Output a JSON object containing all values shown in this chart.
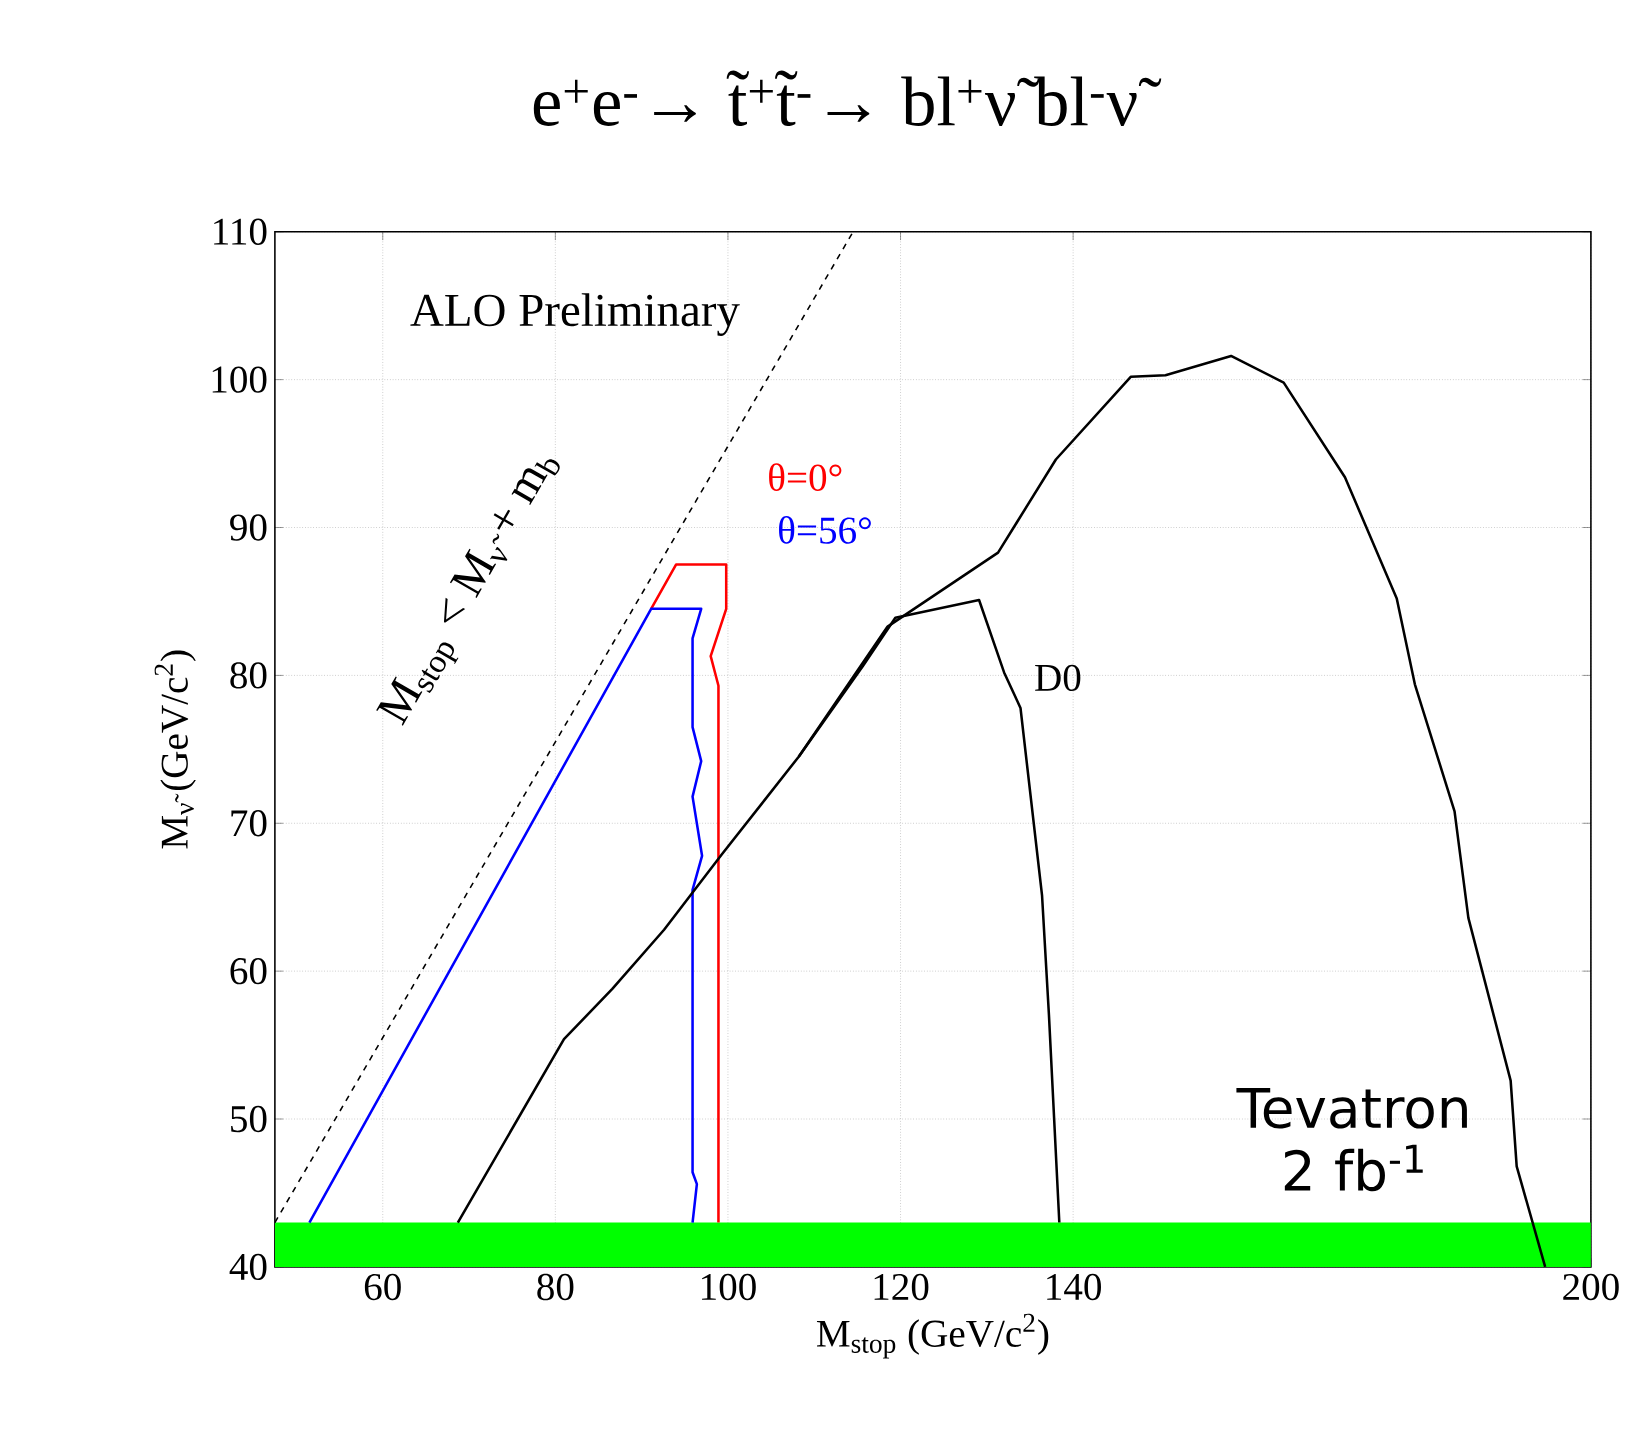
{
  "chart_data": {
    "type": "line",
    "title": "e$^{+}$e$^{-}$→ t̃$^{+}$t̃$^{-}$→ bl$^{+}$ν̃ bl$^{-}$ν̃",
    "xlabel": "M$_{stop}$ (GeV/c$^{2}$)",
    "ylabel": "M$_{ν̃}$ (GeV/c$^{2}$)",
    "xlim": [
      47.5,
      200
    ],
    "ylim": [
      40,
      110
    ],
    "xticks": [
      60,
      80,
      100,
      120,
      140,
      200
    ],
    "yticks": [
      40,
      50,
      60,
      70,
      80,
      90,
      100,
      110
    ],
    "grid": true,
    "annotations": [
      "ALO Preliminary",
      "M$_{stop}$ < M$_{ν̃}$ + m$_{b}$"
    ],
    "bands": [
      {
        "axis": "y",
        "from": 40,
        "to": 43,
        "color": "#00ff00"
      }
    ],
    "series": [
      {
        "color": "#000000",
        "line_style": "dashed",
        "x": [
          47.5,
          114.5
        ],
        "values": [
          43,
          110
        ]
      },
      {
        "name": "θ=0°",
        "color": "#ff0000",
        "x": [
          91.1,
          94.0,
          99.8,
          99.8,
          98.0,
          98.9,
          98.9
        ],
        "values": [
          84.5,
          87.5,
          87.5,
          84.5,
          81.3,
          79.3,
          43
        ]
      },
      {
        "name": "θ=56°",
        "color": "#0000ff",
        "x": [
          51.5,
          91.1,
          96.9,
          95.9,
          95.9,
          96.9,
          95.9,
          97.0,
          95.9,
          95.9,
          96.4,
          95.9
        ],
        "values": [
          43,
          84.5,
          84.5,
          82.5,
          76.5,
          74.2,
          71.8,
          67.8,
          65.5,
          46.4,
          45.6,
          43
        ]
      },
      {
        "name": "D0",
        "color": "#000000",
        "x": [
          68.7,
          81,
          86.6,
          92.6,
          99.3,
          108.2,
          115.6,
          119.4,
          129.1,
          132,
          133.9,
          136.4,
          137.2,
          138.4
        ],
        "values": [
          43,
          55.4,
          58.8,
          62.8,
          67.9,
          74.5,
          80.6,
          83.9,
          85.1,
          80.2,
          77.8,
          65.1,
          57,
          43
        ]
      },
      {
        "name": "Tevatron 2 fb$^{-1}$",
        "color": "#000000",
        "x": [
          108.2,
          118.5,
          131.3,
          138,
          146.7,
          150.7,
          158.3,
          164.4,
          171.5,
          177.5,
          179.6,
          184.2,
          185.8,
          190.7,
          191.4,
          194.7
        ],
        "values": [
          74.5,
          83.3,
          88.3,
          94.6,
          100.2,
          100.3,
          101.6,
          99.8,
          93.4,
          85.2,
          79.4,
          70.8,
          63.6,
          52.6,
          46.8,
          40
        ]
      }
    ]
  }
}
